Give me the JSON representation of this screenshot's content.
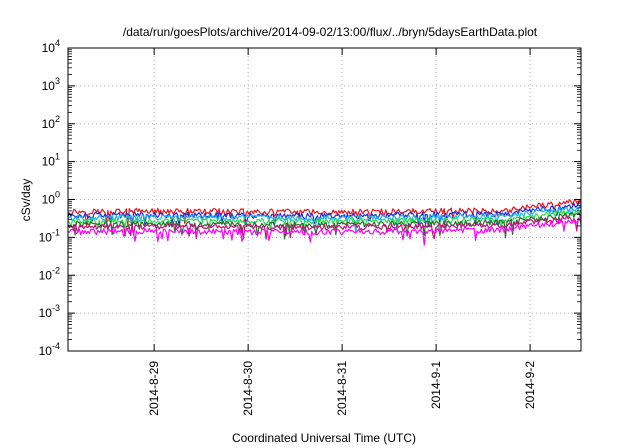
{
  "chart_data": {
    "type": "line",
    "title": "/data/run/goesPlots/archive/2014-09-02/13:00/flux/../bryn/5daysEarthData.plot",
    "xlabel": "Coordinated Universal Time (UTC)",
    "ylabel": "cSv/day",
    "yscale": "log",
    "ylim": [
      0.0001,
      10000
    ],
    "xlim": [
      "2014-08-28T02:00",
      "2014-09-02T13:00"
    ],
    "grid": true,
    "yticks": [
      {
        "value": 0.0001,
        "base": "10",
        "exp": "-4"
      },
      {
        "value": 0.001,
        "base": "10",
        "exp": "-3"
      },
      {
        "value": 0.01,
        "base": "10",
        "exp": "-2"
      },
      {
        "value": 0.1,
        "base": "10",
        "exp": "-1"
      },
      {
        "value": 1,
        "base": "10",
        "exp": "0"
      },
      {
        "value": 10,
        "base": "10",
        "exp": "1"
      },
      {
        "value": 100,
        "base": "10",
        "exp": "2"
      },
      {
        "value": 1000,
        "base": "10",
        "exp": "3"
      },
      {
        "value": 10000,
        "base": "10",
        "exp": "4"
      }
    ],
    "xticks": [
      {
        "value": "2014-08-29T00:00",
        "label": "2014-8-29"
      },
      {
        "value": "2014-08-30T00:00",
        "label": "2014-8-30"
      },
      {
        "value": "2014-08-31T00:00",
        "label": "2014-8-31"
      },
      {
        "value": "2014-09-01T00:00",
        "label": "2014-9-1"
      },
      {
        "value": "2014-09-02T00:00",
        "label": "2014-9-2"
      }
    ],
    "series": [
      {
        "color": "#e8141e",
        "x": [
          "2014-08-28T02:00",
          "2014-08-29T00:00",
          "2014-08-30T00:00",
          "2014-08-31T00:00",
          "2014-09-01T00:00",
          "2014-09-01T18:00",
          "2014-09-02T00:00",
          "2014-09-02T13:00"
        ],
        "values": [
          0.48,
          0.5,
          0.48,
          0.47,
          0.5,
          0.52,
          0.65,
          0.9
        ]
      },
      {
        "color": "#1c2ad8",
        "x": [
          "2014-08-28T02:00",
          "2014-08-29T00:00",
          "2014-08-30T00:00",
          "2014-08-31T00:00",
          "2014-09-01T00:00",
          "2014-09-01T18:00",
          "2014-09-02T00:00",
          "2014-09-02T13:00"
        ],
        "values": [
          0.38,
          0.4,
          0.38,
          0.37,
          0.4,
          0.42,
          0.52,
          0.72
        ]
      },
      {
        "color": "#1eb4f0",
        "x": [
          "2014-08-28T02:00",
          "2014-08-29T00:00",
          "2014-08-30T00:00",
          "2014-08-31T00:00",
          "2014-09-01T00:00",
          "2014-09-01T18:00",
          "2014-09-02T00:00",
          "2014-09-02T13:00"
        ],
        "values": [
          0.33,
          0.34,
          0.33,
          0.32,
          0.34,
          0.36,
          0.45,
          0.6
        ]
      },
      {
        "color": "#1fe04a",
        "x": [
          "2014-08-28T02:00",
          "2014-08-29T00:00",
          "2014-08-30T00:00",
          "2014-08-31T00:00",
          "2014-09-01T00:00",
          "2014-09-01T18:00",
          "2014-09-02T00:00",
          "2014-09-02T13:00"
        ],
        "values": [
          0.27,
          0.28,
          0.27,
          0.27,
          0.28,
          0.3,
          0.37,
          0.48
        ]
      },
      {
        "color": "#2a6a2a",
        "x": [
          "2014-08-28T02:00",
          "2014-08-29T00:00",
          "2014-08-30T00:00",
          "2014-08-31T00:00",
          "2014-09-01T00:00",
          "2014-09-01T18:00",
          "2014-09-02T00:00",
          "2014-09-02T13:00"
        ],
        "values": [
          0.22,
          0.23,
          0.22,
          0.22,
          0.23,
          0.25,
          0.3,
          0.4
        ]
      },
      {
        "color": "#c0147c",
        "x": [
          "2014-08-28T02:00",
          "2014-08-29T00:00",
          "2014-08-30T00:00",
          "2014-08-31T00:00",
          "2014-09-01T00:00",
          "2014-09-01T18:00",
          "2014-09-02T00:00",
          "2014-09-02T13:00"
        ],
        "values": [
          0.19,
          0.2,
          0.19,
          0.19,
          0.2,
          0.21,
          0.26,
          0.34
        ]
      },
      {
        "color": "#ff00ff",
        "x": [
          "2014-08-28T02:00",
          "2014-08-29T00:00",
          "2014-08-30T00:00",
          "2014-08-31T00:00",
          "2014-09-01T00:00",
          "2014-09-01T18:00",
          "2014-09-02T00:00",
          "2014-09-02T13:00"
        ],
        "values": [
          0.14,
          0.15,
          0.14,
          0.14,
          0.15,
          0.16,
          0.2,
          0.28
        ]
      }
    ]
  }
}
